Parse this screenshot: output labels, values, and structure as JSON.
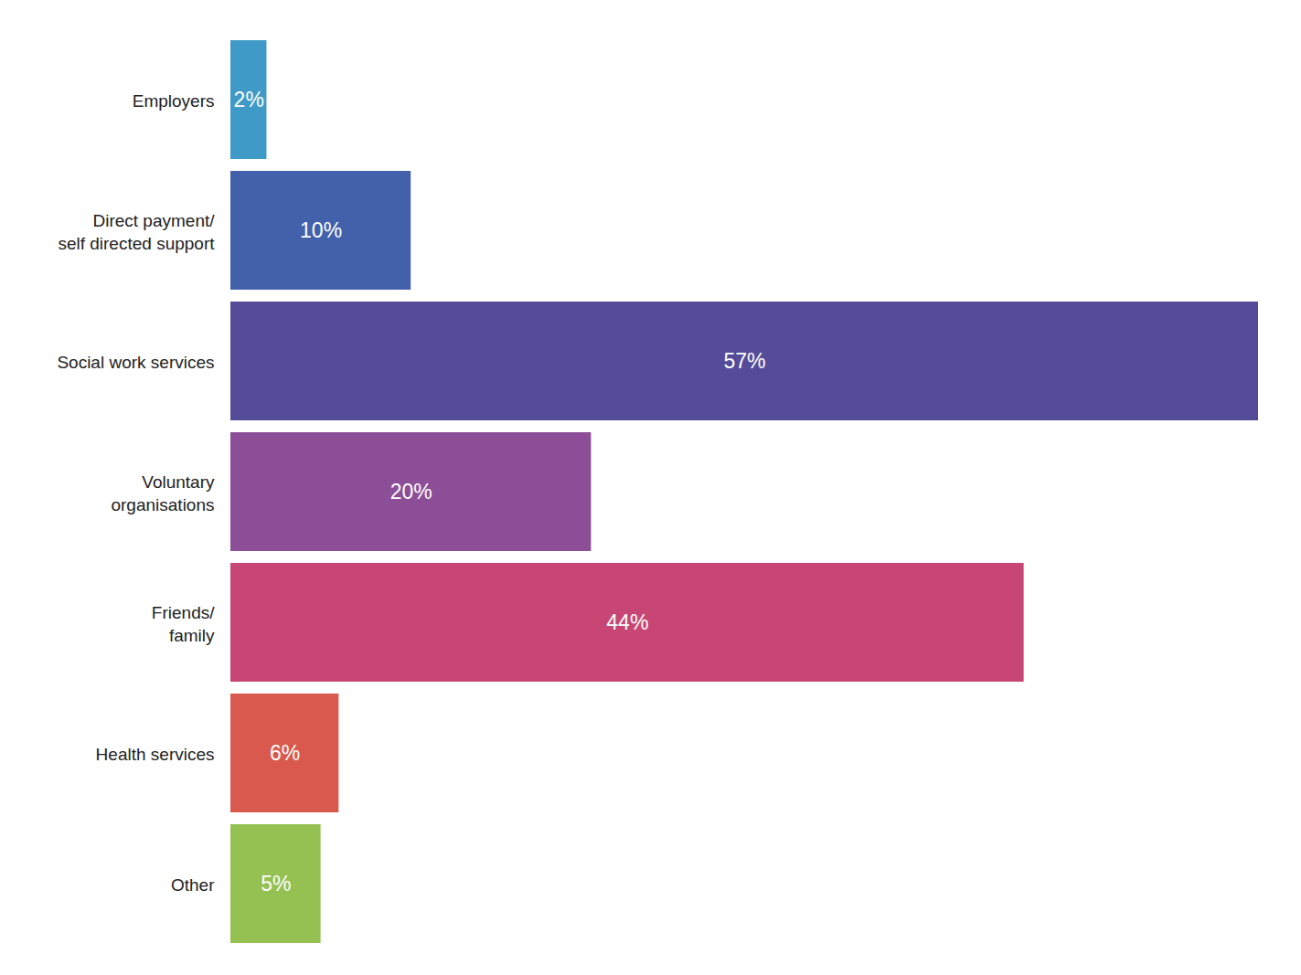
{
  "chart_data": {
    "type": "bar",
    "orientation": "horizontal",
    "categories": [
      "Employers",
      "Direct payment/\nself directed support",
      "Social work services",
      "Voluntary\norganisations",
      "Friends/\nfamily",
      "Health services",
      "Other"
    ],
    "values": [
      2,
      10,
      57,
      20,
      44,
      6,
      5
    ],
    "value_labels": [
      "2%",
      "10%",
      "57%",
      "20%",
      "44%",
      "6%",
      "5%"
    ],
    "colors": [
      "#3f9ac7",
      "#4361ab",
      "#554c99",
      "#8c4e96",
      "#c84673",
      "#d9594e",
      "#95c152"
    ],
    "xlim": [
      0,
      57
    ],
    "data_labels": true,
    "tick_labels": "y",
    "grid": false
  }
}
